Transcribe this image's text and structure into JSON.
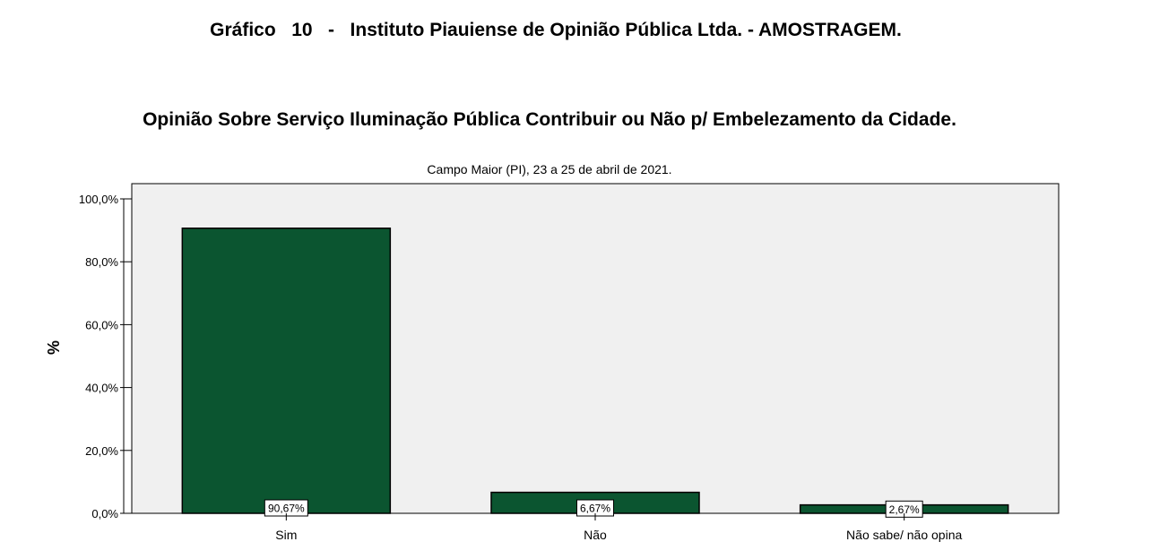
{
  "header": {
    "title": "Gráfico   10   -   Instituto Piauiense de Opinião Pública Ltda. - AMOSTRAGEM."
  },
  "chart_data": {
    "type": "bar",
    "title": "Opinião Sobre Serviço Iluminação Pública Contribuir ou Não p/ Embelezamento da Cidade.",
    "subtitle": "Campo Maior (PI), 23 a 25 de abril de 2021.",
    "xlabel": "",
    "ylabel": "%",
    "ylim": [
      0,
      100
    ],
    "yticks": [
      "100,0%",
      "80,0%",
      "60,0%",
      "40,0%",
      "20,0%",
      "0,0%"
    ],
    "ytick_values": [
      100,
      80,
      60,
      40,
      20,
      0
    ],
    "categories": [
      "Sim",
      "Não",
      "Não sabe/ não opina"
    ],
    "values": [
      90.67,
      6.67,
      2.67
    ],
    "data_labels": [
      "90,67%",
      "6,67%",
      "2,67%"
    ],
    "grid": false,
    "colors": {
      "bar": "#0b5530",
      "plot_background": "#f0f0f0"
    }
  }
}
